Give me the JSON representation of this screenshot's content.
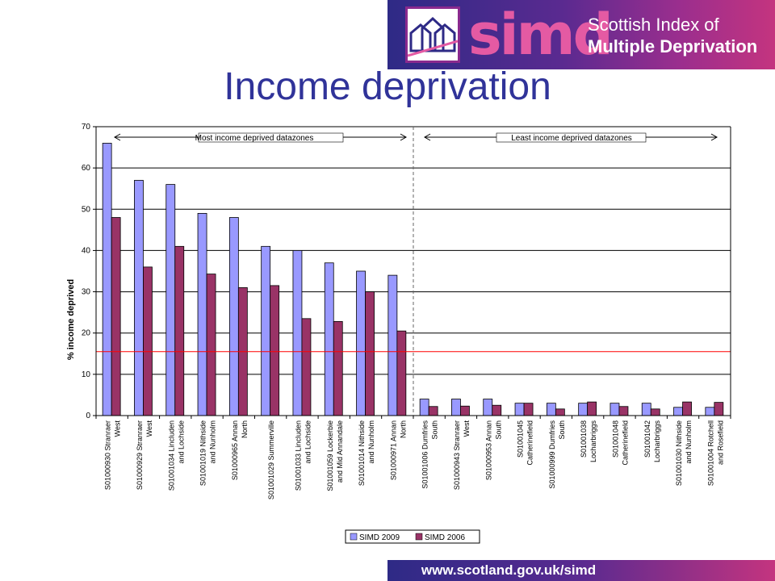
{
  "page_title": "Income deprivation",
  "header": {
    "logo_word": "simd",
    "logo_line1": "Scottish Index of",
    "logo_line2": "Multiple Deprivation"
  },
  "footer": {
    "url": "www.scotland.gov.uk/simd"
  },
  "colors": {
    "simd2009": "#9999ff",
    "simd2006": "#993366",
    "reference_line": "#ff0000",
    "banner_start": "#2e2a86",
    "banner_end": "#c4347f"
  },
  "chart_data": {
    "type": "bar",
    "title": "",
    "xlabel": "",
    "ylabel": "% income deprived",
    "ylim": [
      0,
      70
    ],
    "yticks": [
      0,
      10,
      20,
      30,
      40,
      50,
      60,
      70
    ],
    "grid": true,
    "legend_position": "bottom",
    "reference_line": 15.5,
    "annotations": {
      "left_group": "Most income deprived datazones",
      "right_group": "Least income deprived datazones"
    },
    "categories": [
      [
        "S01000930 Stranraer",
        "West"
      ],
      [
        "S01000929 Stranraer",
        "West"
      ],
      [
        "S01001034 Lincluden",
        "and Lochside"
      ],
      [
        "S01001019 Nithside",
        "and Nunholm"
      ],
      [
        "S01000965 Annan",
        "North"
      ],
      [
        "S01001029 Summerville"
      ],
      [
        "S01001033 Lincluden",
        "and Lochside"
      ],
      [
        "S01001059 Lockerbie",
        "and Mid Annandale"
      ],
      [
        "S01001014 Nithside",
        "and Nunholm"
      ],
      [
        "S01000971 Annan",
        "North"
      ],
      [
        "S01001006 Dumfries",
        "South"
      ],
      [
        "S01000943 Stranraer",
        "West"
      ],
      [
        "S01000953 Annan",
        "South"
      ],
      [
        "S01001045",
        "Catherinefield"
      ],
      [
        "S01000999 Dumfries",
        "South"
      ],
      [
        "S01001038",
        "Locharbriggs"
      ],
      [
        "S01001048",
        "Catherinefield"
      ],
      [
        "S01001042",
        "Locharbriggs"
      ],
      [
        "S01001030 Nithside",
        "and Nunholm"
      ],
      [
        "S01001004 Rotchell",
        "and Rosefield"
      ]
    ],
    "series": [
      {
        "name": "SIMD 2009",
        "values": [
          66,
          57,
          56,
          49,
          48,
          41,
          40,
          37,
          35,
          34,
          4,
          4,
          4,
          3,
          3,
          3,
          3,
          3,
          2,
          2
        ]
      },
      {
        "name": "SIMD 2006",
        "values": [
          48,
          36,
          41,
          34.3,
          31,
          31.5,
          23.5,
          22.8,
          30,
          20.5,
          2.2,
          2.3,
          2.5,
          3,
          1.6,
          3.3,
          2.2,
          1.6,
          3.3,
          3.2
        ]
      }
    ]
  }
}
